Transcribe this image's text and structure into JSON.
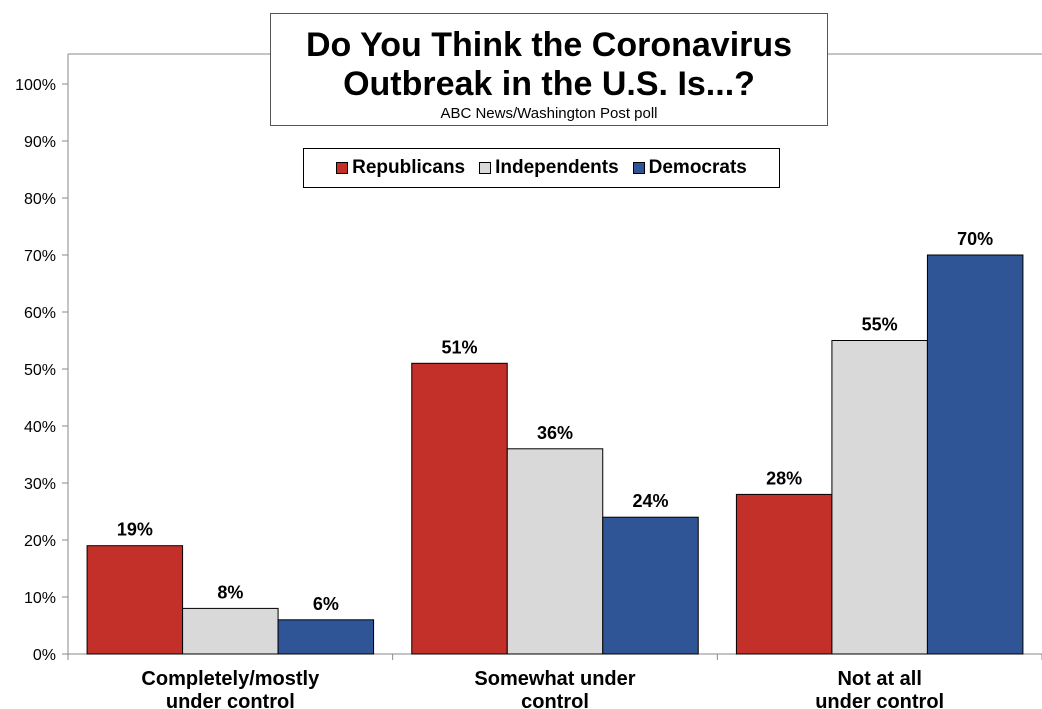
{
  "chart_data": {
    "type": "bar",
    "title": "Do You Think the Coronavirus Outbreak in the U.S. Is...?",
    "title_lines": [
      "Do You Think the Coronavirus",
      "Outbreak in the U.S. Is...?"
    ],
    "subtitle": "ABC News/Washington Post poll",
    "categories": [
      [
        "Completely/mostly",
        "under control"
      ],
      [
        "Somewhat under",
        "control"
      ],
      [
        "Not at all",
        "under control"
      ]
    ],
    "series": [
      {
        "name": "Republicans",
        "color": "#c3302a",
        "values": [
          19,
          51,
          28
        ]
      },
      {
        "name": "Independents",
        "color": "#d9d9d9",
        "values": [
          8,
          36,
          55
        ]
      },
      {
        "name": "Democrats",
        "color": "#2f5597",
        "values": [
          6,
          24,
          70
        ]
      }
    ],
    "ylim": [
      0,
      100
    ],
    "yticks": [
      0,
      10,
      20,
      30,
      40,
      50,
      60,
      70,
      80,
      90,
      100
    ],
    "value_suffix": "%",
    "legend_position": "top-center",
    "grid": false
  }
}
